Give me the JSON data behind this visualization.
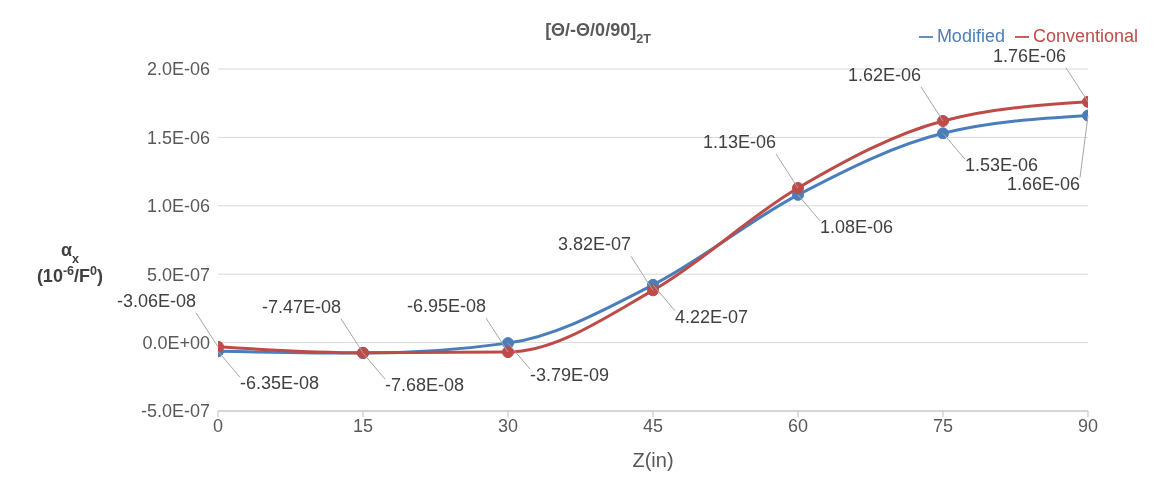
{
  "chart_data": {
    "type": "line",
    "title": "[Θ/-Θ/0/90]$_{2T}$",
    "xlabel": "Z(in)",
    "ylabel": "α$_{x}$\n(10$^{-6}$/F$^{0}$)",
    "x": [
      0,
      15,
      30,
      45,
      60,
      75,
      90
    ],
    "series": [
      {
        "name": "Modified",
        "color": "#4a7ebb",
        "values": [
          -6.35e-08,
          -7.68e-08,
          -3.79e-09,
          4.22e-07,
          1.08e-06,
          1.53e-06,
          1.66e-06
        ],
        "value_labels": [
          "-6.35E-08",
          "-7.68E-08",
          "-3.79E-09",
          "4.22E-07",
          "1.08E-06",
          "1.53E-06",
          "1.66E-06"
        ]
      },
      {
        "name": "Conventional",
        "color": "#be4b48",
        "values": [
          -3.06e-08,
          -7.47e-08,
          -6.95e-08,
          3.82e-07,
          1.13e-06,
          1.62e-06,
          1.76e-06
        ],
        "value_labels": [
          "-3.06E-08",
          "-7.47E-08",
          "-6.95E-08",
          "3.82E-07",
          "1.13E-06",
          "1.62E-06",
          "1.76E-06"
        ]
      }
    ],
    "xlim": [
      0,
      90
    ],
    "xticks": [
      0,
      15,
      30,
      45,
      60,
      75,
      90
    ],
    "ylim": [
      -5e-07,
      2e-06
    ],
    "yticks": [
      {
        "value": -5e-07,
        "label": "-5.0E-07"
      },
      {
        "value": 0,
        "label": "0.0E+00"
      },
      {
        "value": 5e-07,
        "label": "5.0E-07"
      },
      {
        "value": 1e-06,
        "label": "1.0E-06"
      },
      {
        "value": 1.5e-06,
        "label": "1.5E-06"
      },
      {
        "value": 2e-06,
        "label": "2.0E-06"
      }
    ],
    "grid": "y",
    "legend": "top right",
    "marker": "circle",
    "line_style": "solid"
  }
}
